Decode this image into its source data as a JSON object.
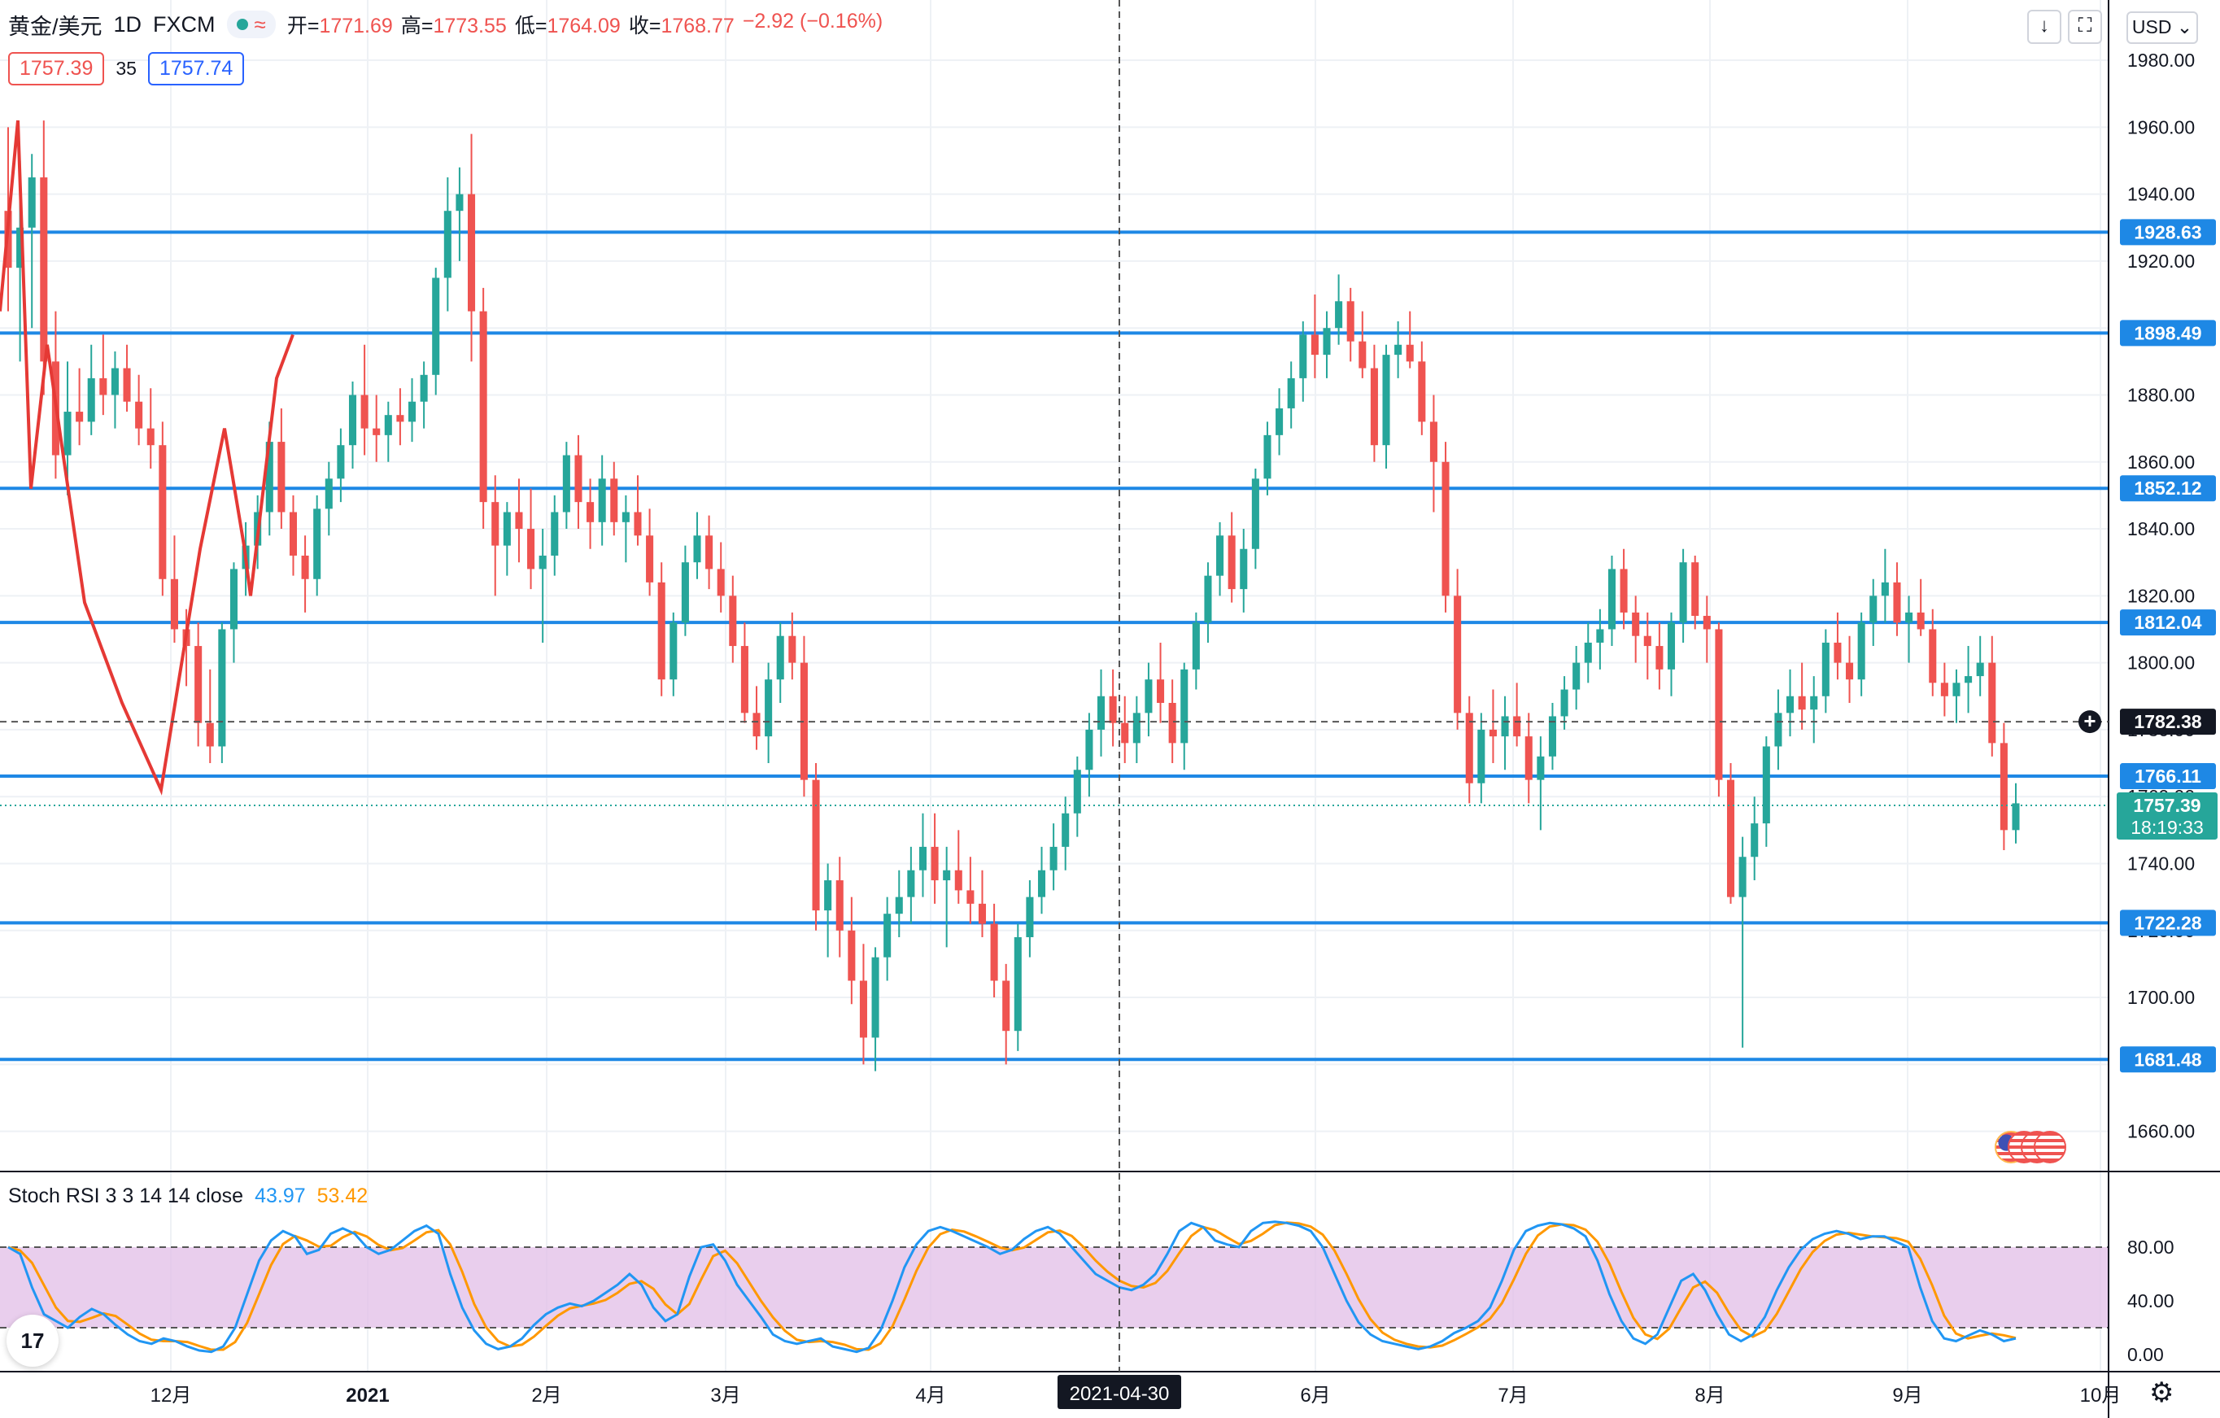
{
  "header": {
    "symbol": "黄金/美元",
    "interval": "1D",
    "source": "FXCM",
    "open_label": "开",
    "open": "1771.69",
    "high_label": "高",
    "high": "1773.55",
    "low_label": "低",
    "low": "1764.09",
    "close_label": "收",
    "close": "1768.77",
    "change": "−2.92 (−0.16%)"
  },
  "price_boxes": {
    "bid": "1757.39",
    "spread": "35",
    "ask": "1757.74"
  },
  "toolbar": {
    "currency": "USD",
    "download_icon": "arrow-down-icon",
    "fullscreen_icon": "fullscreen-icon"
  },
  "chart_data": {
    "type": "candlestick",
    "instrument": "黄金/美元",
    "timeframe": "1D",
    "y_axis": {
      "ticks": [
        "1660.00",
        "1680.00",
        "1700.00",
        "1720.00",
        "1740.00",
        "1760.00",
        "1780.00",
        "1800.00",
        "1820.00",
        "1840.00",
        "1860.00",
        "1880.00",
        "1900.00",
        "1920.00",
        "1940.00",
        "1960.00",
        "1980.00"
      ],
      "ylim": [
        1648,
        1998
      ]
    },
    "x_axis": {
      "ticks": [
        "12月",
        "2021",
        "2月",
        "3月",
        "4月",
        "5月",
        "6月",
        "7月",
        "8月",
        "9月",
        "10月"
      ],
      "crosshair_label": "2021-04-30"
    },
    "horizontal_lines": [
      "1928.63",
      "1898.49",
      "1852.12",
      "1812.04",
      "1766.11",
      "1722.28",
      "1681.48"
    ],
    "crosshair_price": "1782.38",
    "current_price": "1757.39",
    "countdown": "18:19:33",
    "candles": [
      [
        1935,
        1960,
        1905,
        1918
      ],
      [
        1918,
        1950,
        1890,
        1930
      ],
      [
        1930,
        1952,
        1900,
        1945
      ],
      [
        1945,
        1962,
        1880,
        1890
      ],
      [
        1890,
        1905,
        1855,
        1862
      ],
      [
        1862,
        1890,
        1850,
        1875
      ],
      [
        1875,
        1888,
        1865,
        1872
      ],
      [
        1872,
        1895,
        1868,
        1885
      ],
      [
        1885,
        1898,
        1874,
        1880
      ],
      [
        1880,
        1893,
        1870,
        1888
      ],
      [
        1888,
        1895,
        1875,
        1878
      ],
      [
        1878,
        1886,
        1865,
        1870
      ],
      [
        1870,
        1882,
        1858,
        1865
      ],
      [
        1865,
        1872,
        1820,
        1825
      ],
      [
        1825,
        1838,
        1806,
        1810
      ],
      [
        1810,
        1816,
        1793,
        1805
      ],
      [
        1805,
        1812,
        1775,
        1782
      ],
      [
        1782,
        1798,
        1770,
        1775
      ],
      [
        1775,
        1812,
        1770,
        1810
      ],
      [
        1810,
        1830,
        1800,
        1828
      ],
      [
        1828,
        1842,
        1820,
        1835
      ],
      [
        1835,
        1850,
        1828,
        1845
      ],
      [
        1845,
        1872,
        1838,
        1866
      ],
      [
        1866,
        1876,
        1840,
        1845
      ],
      [
        1845,
        1850,
        1826,
        1832
      ],
      [
        1832,
        1838,
        1815,
        1825
      ],
      [
        1825,
        1850,
        1820,
        1846
      ],
      [
        1846,
        1860,
        1838,
        1855
      ],
      [
        1855,
        1870,
        1848,
        1865
      ],
      [
        1865,
        1884,
        1858,
        1880
      ],
      [
        1880,
        1895,
        1862,
        1870
      ],
      [
        1870,
        1880,
        1860,
        1868
      ],
      [
        1868,
        1878,
        1860,
        1874
      ],
      [
        1874,
        1882,
        1865,
        1872
      ],
      [
        1872,
        1885,
        1866,
        1878
      ],
      [
        1878,
        1890,
        1870,
        1886
      ],
      [
        1886,
        1918,
        1880,
        1915
      ],
      [
        1915,
        1945,
        1905,
        1935
      ],
      [
        1935,
        1948,
        1920,
        1940
      ],
      [
        1940,
        1958,
        1890,
        1905
      ],
      [
        1905,
        1912,
        1840,
        1848
      ],
      [
        1848,
        1856,
        1820,
        1835
      ],
      [
        1835,
        1848,
        1826,
        1845
      ],
      [
        1845,
        1855,
        1830,
        1840
      ],
      [
        1840,
        1852,
        1822,
        1828
      ],
      [
        1828,
        1840,
        1806,
        1832
      ],
      [
        1832,
        1850,
        1826,
        1845
      ],
      [
        1845,
        1866,
        1840,
        1862
      ],
      [
        1862,
        1868,
        1840,
        1848
      ],
      [
        1848,
        1855,
        1834,
        1842
      ],
      [
        1842,
        1862,
        1835,
        1855
      ],
      [
        1855,
        1860,
        1838,
        1842
      ],
      [
        1842,
        1850,
        1830,
        1845
      ],
      [
        1845,
        1856,
        1835,
        1838
      ],
      [
        1838,
        1846,
        1820,
        1824
      ],
      [
        1824,
        1830,
        1790,
        1795
      ],
      [
        1795,
        1815,
        1790,
        1812
      ],
      [
        1812,
        1835,
        1808,
        1830
      ],
      [
        1830,
        1845,
        1825,
        1838
      ],
      [
        1838,
        1844,
        1822,
        1828
      ],
      [
        1828,
        1836,
        1815,
        1820
      ],
      [
        1820,
        1826,
        1800,
        1805
      ],
      [
        1805,
        1812,
        1782,
        1785
      ],
      [
        1785,
        1793,
        1774,
        1778
      ],
      [
        1778,
        1800,
        1770,
        1795
      ],
      [
        1795,
        1812,
        1788,
        1808
      ],
      [
        1808,
        1815,
        1795,
        1800
      ],
      [
        1800,
        1808,
        1760,
        1765
      ],
      [
        1765,
        1770,
        1720,
        1726
      ],
      [
        1726,
        1740,
        1712,
        1735
      ],
      [
        1735,
        1742,
        1712,
        1720
      ],
      [
        1720,
        1730,
        1698,
        1705
      ],
      [
        1705,
        1716,
        1680,
        1688
      ],
      [
        1688,
        1715,
        1678,
        1712
      ],
      [
        1712,
        1730,
        1705,
        1725
      ],
      [
        1725,
        1738,
        1718,
        1730
      ],
      [
        1730,
        1745,
        1722,
        1738
      ],
      [
        1738,
        1755,
        1730,
        1745
      ],
      [
        1745,
        1755,
        1728,
        1735
      ],
      [
        1735,
        1745,
        1715,
        1738
      ],
      [
        1738,
        1750,
        1728,
        1732
      ],
      [
        1732,
        1742,
        1722,
        1728
      ],
      [
        1728,
        1738,
        1718,
        1722
      ],
      [
        1722,
        1728,
        1700,
        1705
      ],
      [
        1705,
        1710,
        1680,
        1690
      ],
      [
        1690,
        1722,
        1684,
        1718
      ],
      [
        1718,
        1735,
        1712,
        1730
      ],
      [
        1730,
        1745,
        1725,
        1738
      ],
      [
        1738,
        1752,
        1732,
        1745
      ],
      [
        1745,
        1760,
        1738,
        1755
      ],
      [
        1755,
        1772,
        1748,
        1768
      ],
      [
        1768,
        1785,
        1760,
        1780
      ],
      [
        1780,
        1798,
        1772,
        1790
      ],
      [
        1790,
        1798,
        1775,
        1782
      ],
      [
        1782,
        1790,
        1770,
        1776
      ],
      [
        1776,
        1790,
        1770,
        1785
      ],
      [
        1785,
        1800,
        1778,
        1795
      ],
      [
        1795,
        1806,
        1782,
        1788
      ],
      [
        1788,
        1795,
        1770,
        1776
      ],
      [
        1776,
        1800,
        1768,
        1798
      ],
      [
        1798,
        1815,
        1792,
        1812
      ],
      [
        1812,
        1830,
        1806,
        1826
      ],
      [
        1826,
        1842,
        1820,
        1838
      ],
      [
        1838,
        1845,
        1818,
        1822
      ],
      [
        1822,
        1840,
        1815,
        1834
      ],
      [
        1834,
        1858,
        1828,
        1855
      ],
      [
        1855,
        1872,
        1850,
        1868
      ],
      [
        1868,
        1882,
        1862,
        1876
      ],
      [
        1876,
        1890,
        1870,
        1885
      ],
      [
        1885,
        1902,
        1878,
        1898
      ],
      [
        1898,
        1910,
        1885,
        1892
      ],
      [
        1892,
        1905,
        1885,
        1900
      ],
      [
        1900,
        1916,
        1895,
        1908
      ],
      [
        1908,
        1912,
        1890,
        1896
      ],
      [
        1896,
        1905,
        1885,
        1888
      ],
      [
        1888,
        1895,
        1860,
        1865
      ],
      [
        1865,
        1895,
        1858,
        1892
      ],
      [
        1892,
        1902,
        1885,
        1895
      ],
      [
        1895,
        1905,
        1888,
        1890
      ],
      [
        1890,
        1896,
        1868,
        1872
      ],
      [
        1872,
        1880,
        1845,
        1860
      ],
      [
        1860,
        1866,
        1815,
        1820
      ],
      [
        1820,
        1828,
        1780,
        1785
      ],
      [
        1785,
        1790,
        1758,
        1764
      ],
      [
        1764,
        1785,
        1758,
        1780
      ],
      [
        1780,
        1792,
        1770,
        1778
      ],
      [
        1778,
        1790,
        1768,
        1784
      ],
      [
        1784,
        1794,
        1775,
        1778
      ],
      [
        1778,
        1785,
        1758,
        1765
      ],
      [
        1765,
        1778,
        1750,
        1772
      ],
      [
        1772,
        1788,
        1768,
        1784
      ],
      [
        1784,
        1796,
        1780,
        1792
      ],
      [
        1792,
        1805,
        1786,
        1800
      ],
      [
        1800,
        1812,
        1794,
        1806
      ],
      [
        1806,
        1816,
        1798,
        1810
      ],
      [
        1810,
        1832,
        1805,
        1828
      ],
      [
        1828,
        1834,
        1810,
        1815
      ],
      [
        1815,
        1820,
        1800,
        1808
      ],
      [
        1808,
        1815,
        1795,
        1805
      ],
      [
        1805,
        1812,
        1792,
        1798
      ],
      [
        1798,
        1815,
        1790,
        1812
      ],
      [
        1812,
        1834,
        1806,
        1830
      ],
      [
        1830,
        1832,
        1810,
        1814
      ],
      [
        1814,
        1820,
        1800,
        1810
      ],
      [
        1810,
        1812,
        1760,
        1765
      ],
      [
        1765,
        1770,
        1728,
        1730
      ],
      [
        1730,
        1748,
        1685,
        1742
      ],
      [
        1742,
        1760,
        1735,
        1752
      ],
      [
        1752,
        1778,
        1745,
        1775
      ],
      [
        1775,
        1792,
        1768,
        1785
      ],
      [
        1785,
        1798,
        1778,
        1790
      ],
      [
        1790,
        1800,
        1780,
        1786
      ],
      [
        1786,
        1796,
        1776,
        1790
      ],
      [
        1790,
        1810,
        1785,
        1806
      ],
      [
        1806,
        1815,
        1795,
        1800
      ],
      [
        1800,
        1808,
        1788,
        1795
      ],
      [
        1795,
        1815,
        1790,
        1812
      ],
      [
        1812,
        1825,
        1805,
        1820
      ],
      [
        1820,
        1834,
        1812,
        1824
      ],
      [
        1824,
        1830,
        1808,
        1812
      ],
      [
        1812,
        1820,
        1800,
        1815
      ],
      [
        1815,
        1825,
        1808,
        1810
      ],
      [
        1810,
        1816,
        1790,
        1794
      ],
      [
        1794,
        1800,
        1784,
        1790
      ],
      [
        1790,
        1798,
        1782,
        1794
      ],
      [
        1794,
        1805,
        1785,
        1796
      ],
      [
        1796,
        1808,
        1790,
        1800
      ],
      [
        1800,
        1808,
        1772,
        1776
      ],
      [
        1776,
        1782,
        1744,
        1750
      ],
      [
        1750,
        1764,
        1746,
        1758
      ]
    ],
    "indicator": {
      "name": "Stoch RSI 3 3 14 14 close",
      "k_value": "43.97",
      "d_value": "53.42",
      "k_color": "#2196f3",
      "d_color": "#ff9800",
      "y_ticks": [
        "0.00",
        "40.00",
        "80.00"
      ],
      "band": [
        20,
        80
      ],
      "k": [
        80,
        75,
        50,
        30,
        25,
        20,
        28,
        34,
        30,
        22,
        15,
        10,
        8,
        12,
        10,
        6,
        3,
        2,
        6,
        20,
        45,
        70,
        85,
        92,
        88,
        75,
        78,
        90,
        94,
        90,
        80,
        75,
        78,
        85,
        92,
        96,
        90,
        60,
        35,
        18,
        8,
        4,
        6,
        12,
        22,
        30,
        35,
        38,
        36,
        40,
        46,
        52,
        60,
        52,
        35,
        25,
        30,
        58,
        80,
        82,
        70,
        52,
        40,
        28,
        15,
        10,
        8,
        10,
        12,
        6,
        4,
        2,
        5,
        18,
        40,
        65,
        82,
        92,
        95,
        92,
        88,
        84,
        80,
        75,
        78,
        86,
        92,
        95,
        90,
        80,
        70,
        60,
        55,
        50,
        48,
        52,
        60,
        75,
        92,
        98,
        95,
        85,
        82,
        80,
        92,
        98,
        99,
        98,
        96,
        92,
        80,
        60,
        40,
        24,
        15,
        10,
        8,
        6,
        4,
        6,
        10,
        16,
        20,
        25,
        35,
        55,
        78,
        92,
        96,
        98,
        97,
        94,
        88,
        70,
        45,
        25,
        12,
        8,
        15,
        35,
        55,
        60,
        48,
        30,
        15,
        10,
        15,
        28,
        48,
        65,
        78,
        86,
        90,
        92,
        90,
        86,
        88,
        88,
        84,
        80,
        50,
        25,
        12,
        10,
        14,
        18,
        15,
        10,
        12
      ]
    }
  }
}
